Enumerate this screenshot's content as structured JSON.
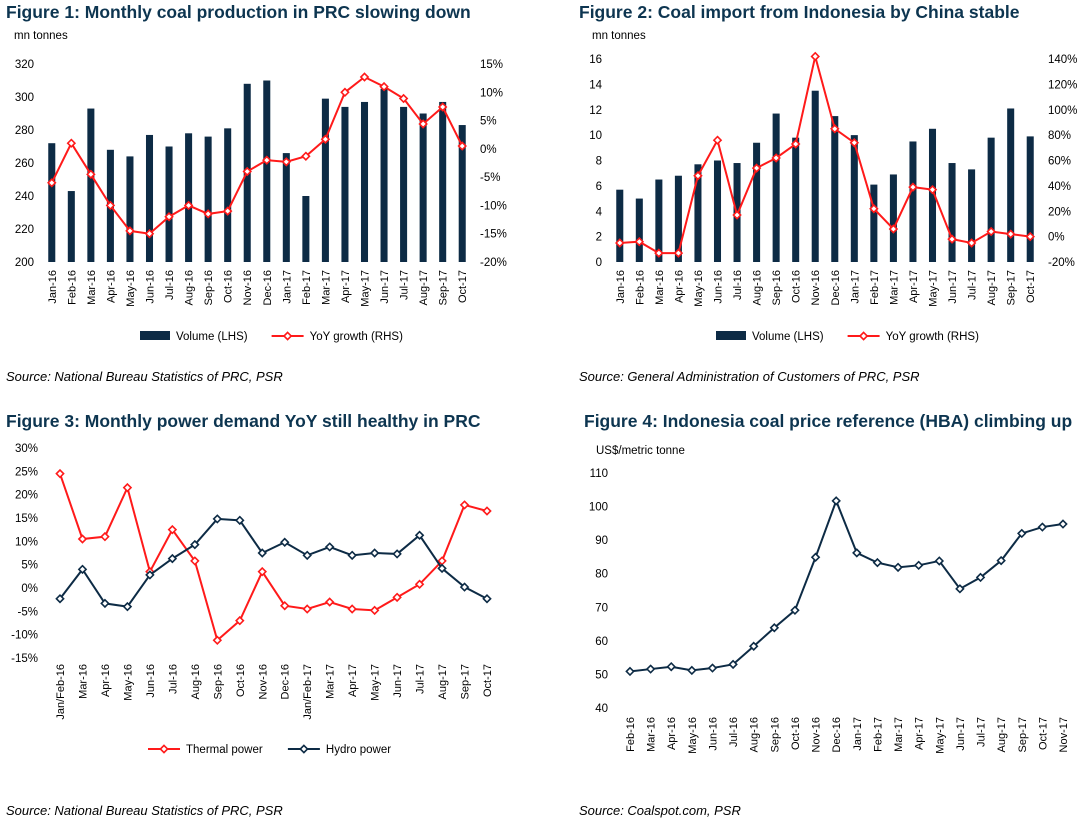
{
  "colors": {
    "navy": "#0d2b45",
    "red": "#ff1a1a",
    "title": "#0d3550"
  },
  "charts": [
    {
      "title": "Figure 1: Monthly coal production in PRC slowing down",
      "source": "Source:  National Bureau Statistics of PRC, PSR",
      "unit_label": "mn tonnes",
      "chart_data": {
        "type": "bar+line",
        "categories": [
          "Jan-16",
          "Feb-16",
          "Mar-16",
          "Apr-16",
          "May-16",
          "Jun-16",
          "Jul-16",
          "Aug-16",
          "Sep-16",
          "Oct-16",
          "Nov-16",
          "Dec-16",
          "Jan-17",
          "Feb-17",
          "Mar-17",
          "Apr-17",
          "May-17",
          "Jun-17",
          "Jul-17",
          "Aug-17",
          "Sep-17",
          "Oct-17"
        ],
        "y_left": {
          "min": 200,
          "max": 320,
          "ticks": [
            200,
            220,
            240,
            260,
            280,
            300,
            320
          ],
          "tick_labels": [
            "200",
            "220",
            "240",
            "260",
            "280",
            "300",
            "320"
          ]
        },
        "y_right": {
          "min": -20,
          "max": 15,
          "ticks": [
            -20,
            -15,
            -10,
            -5,
            0,
            5,
            10,
            15
          ],
          "tick_labels": [
            "-20%",
            "-15%",
            "-10%",
            "-5%",
            "0%",
            "5%",
            "10%",
            "15%"
          ]
        },
        "series": [
          {
            "name": "Volume (LHS)",
            "kind": "bar",
            "axis": "left",
            "color": "#0d2b45",
            "values": [
              272,
              243,
              293,
              268,
              264,
              277,
              270,
              278,
              276,
              281,
              308,
              310,
              266,
              240,
              299,
              294,
              297,
              305,
              294,
              290,
              297,
              283
            ]
          },
          {
            "name": "YoY growth (RHS)",
            "kind": "line",
            "axis": "right",
            "color": "#ff1a1a",
            "values": [
              -6,
              1,
              -4.5,
              -10,
              -14.5,
              -15,
              -12,
              -10,
              -11.5,
              -11,
              -4,
              -2,
              -2.3,
              -1.3,
              1.7,
              10,
              12.7,
              11,
              8.9,
              4.4,
              7.4,
              0.5
            ]
          }
        ]
      }
    },
    {
      "title": "Figure 2: Coal import from Indonesia by China stable",
      "source": "Source: General Administration of Customers of PRC, PSR",
      "unit_label": "mn tonnes",
      "chart_data": {
        "type": "bar+line",
        "categories": [
          "Jan-16",
          "Feb-16",
          "Mar-16",
          "Apr-16",
          "May-16",
          "Jun-16",
          "Jul-16",
          "Aug-16",
          "Sep-16",
          "Oct-16",
          "Nov-16",
          "Dec-16",
          "Jan-17",
          "Feb-17",
          "Mar-17",
          "Apr-17",
          "May-17",
          "Jun-17",
          "Jul-17",
          "Aug-17",
          "Sep-17",
          "Oct-17"
        ],
        "y_left": {
          "min": 0,
          "max": 16,
          "ticks": [
            0,
            2,
            4,
            6,
            8,
            10,
            12,
            14,
            16
          ],
          "tick_labels": [
            "0",
            "2",
            "4",
            "6",
            "8",
            "10",
            "12",
            "14",
            "16"
          ]
        },
        "y_right": {
          "min": -20,
          "max": 140,
          "ticks": [
            -20,
            0,
            20,
            40,
            60,
            80,
            100,
            120,
            140
          ],
          "tick_labels": [
            "-20%",
            "0%",
            "20%",
            "40%",
            "60%",
            "80%",
            "100%",
            "120%",
            "140%"
          ]
        },
        "series": [
          {
            "name": "Volume (LHS)",
            "kind": "bar",
            "axis": "left",
            "color": "#0d2b45",
            "values": [
              5.7,
              5.0,
              6.5,
              6.8,
              7.7,
              8.0,
              7.8,
              9.4,
              11.7,
              9.8,
              13.5,
              11.5,
              10.0,
              6.1,
              6.9,
              9.5,
              10.5,
              7.8,
              7.3,
              9.8,
              12.1,
              9.9
            ]
          },
          {
            "name": "YoY growth (RHS)",
            "kind": "line",
            "axis": "right",
            "color": "#ff1a1a",
            "values": [
              -5,
              -4,
              -13,
              -13,
              48,
              76,
              17,
              54,
              62,
              73,
              142,
              85,
              74,
              22,
              6,
              39,
              37,
              -2,
              -5,
              4,
              2,
              0
            ]
          }
        ]
      }
    },
    {
      "title": "Figure 3: Monthly power demand YoY still healthy in PRC",
      "source": "Source:  National Bureau Statistics of PRC, PSR",
      "chart_data": {
        "type": "line",
        "categories": [
          "Jan/Feb-16",
          "Mar-16",
          "Apr-16",
          "May-16",
          "Jun-16",
          "Jul-16",
          "Aug-16",
          "Sep-16",
          "Oct-16",
          "Nov-16",
          "Dec-16",
          "Jan/Feb-17",
          "Mar-17",
          "Apr-17",
          "May-17",
          "Jun-17",
          "Jul-17",
          "Aug-17",
          "Sep-17",
          "Oct-17"
        ],
        "y": {
          "min": -15,
          "max": 30,
          "ticks": [
            -15,
            -10,
            -5,
            0,
            5,
            10,
            15,
            20,
            25,
            30
          ],
          "tick_labels": [
            "-15%",
            "-10%",
            "-5%",
            "0%",
            "5%",
            "10%",
            "15%",
            "20%",
            "25%",
            "30%"
          ]
        },
        "series": [
          {
            "name": "Thermal power",
            "color": "#ff1a1a",
            "values": [
              24.5,
              10.5,
              11,
              21.5,
              3.5,
              12.5,
              5.8,
              -11.2,
              -7,
              3.5,
              -3.8,
              -4.5,
              -3,
              -4.5,
              -4.8,
              -2,
              0.8,
              5.8,
              17.8,
              16.5
            ]
          },
          {
            "name": "Hydro power",
            "color": "#0d2b45",
            "values": [
              -2.3,
              4,
              -3.3,
              -4,
              2.8,
              6.3,
              9.3,
              14.8,
              14.5,
              7.5,
              9.8,
              7,
              8.8,
              7,
              7.5,
              7.3,
              11.3,
              4.2,
              0.2,
              -2.3
            ]
          }
        ]
      }
    },
    {
      "title": "Figure 4: Indonesia coal price reference (HBA) climbing up",
      "source": "Source: Coalspot.com, PSR",
      "unit_label": "US$/metric tonne",
      "chart_data": {
        "type": "line",
        "categories": [
          "Feb-16",
          "Mar-16",
          "Apr-16",
          "May-16",
          "Jun-16",
          "Jul-16",
          "Aug-16",
          "Sep-16",
          "Oct-16",
          "Nov-16",
          "Dec-16",
          "Jan-17",
          "Feb-17",
          "Mar-17",
          "Apr-17",
          "May-17",
          "Jun-17",
          "Jul-17",
          "Aug-17",
          "Sep-17",
          "Oct-17",
          "Nov-17"
        ],
        "y": {
          "min": 40,
          "max": 110,
          "ticks": [
            40,
            50,
            60,
            70,
            80,
            90,
            100,
            110
          ],
          "tick_labels": [
            "40",
            "50",
            "60",
            "70",
            "80",
            "90",
            "100",
            "110"
          ]
        },
        "series": [
          {
            "name": "HBA",
            "color": "#0d2b45",
            "values": [
              50.9,
              51.6,
              52.3,
              51.2,
              51.9,
              53.0,
              58.4,
              63.9,
              69.1,
              84.9,
              101.7,
              86.2,
              83.3,
              81.9,
              82.5,
              83.8,
              75.5,
              78.9,
              83.9,
              92.0,
              93.9,
              94.8
            ]
          }
        ]
      }
    }
  ]
}
